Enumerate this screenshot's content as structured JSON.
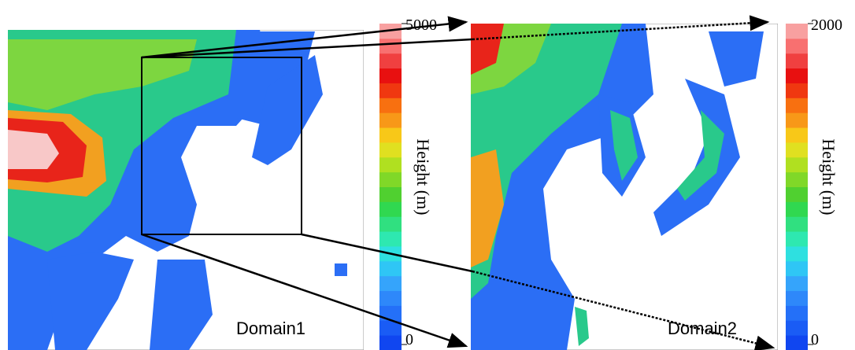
{
  "panels": [
    {
      "label": "Domain1",
      "colorbar": {
        "label": "Height (m)",
        "max": 5000,
        "min": 0
      }
    },
    {
      "label": "Domain2",
      "colorbar": {
        "label": "Height (m)",
        "max": 2000,
        "min": 0
      }
    }
  ]
}
